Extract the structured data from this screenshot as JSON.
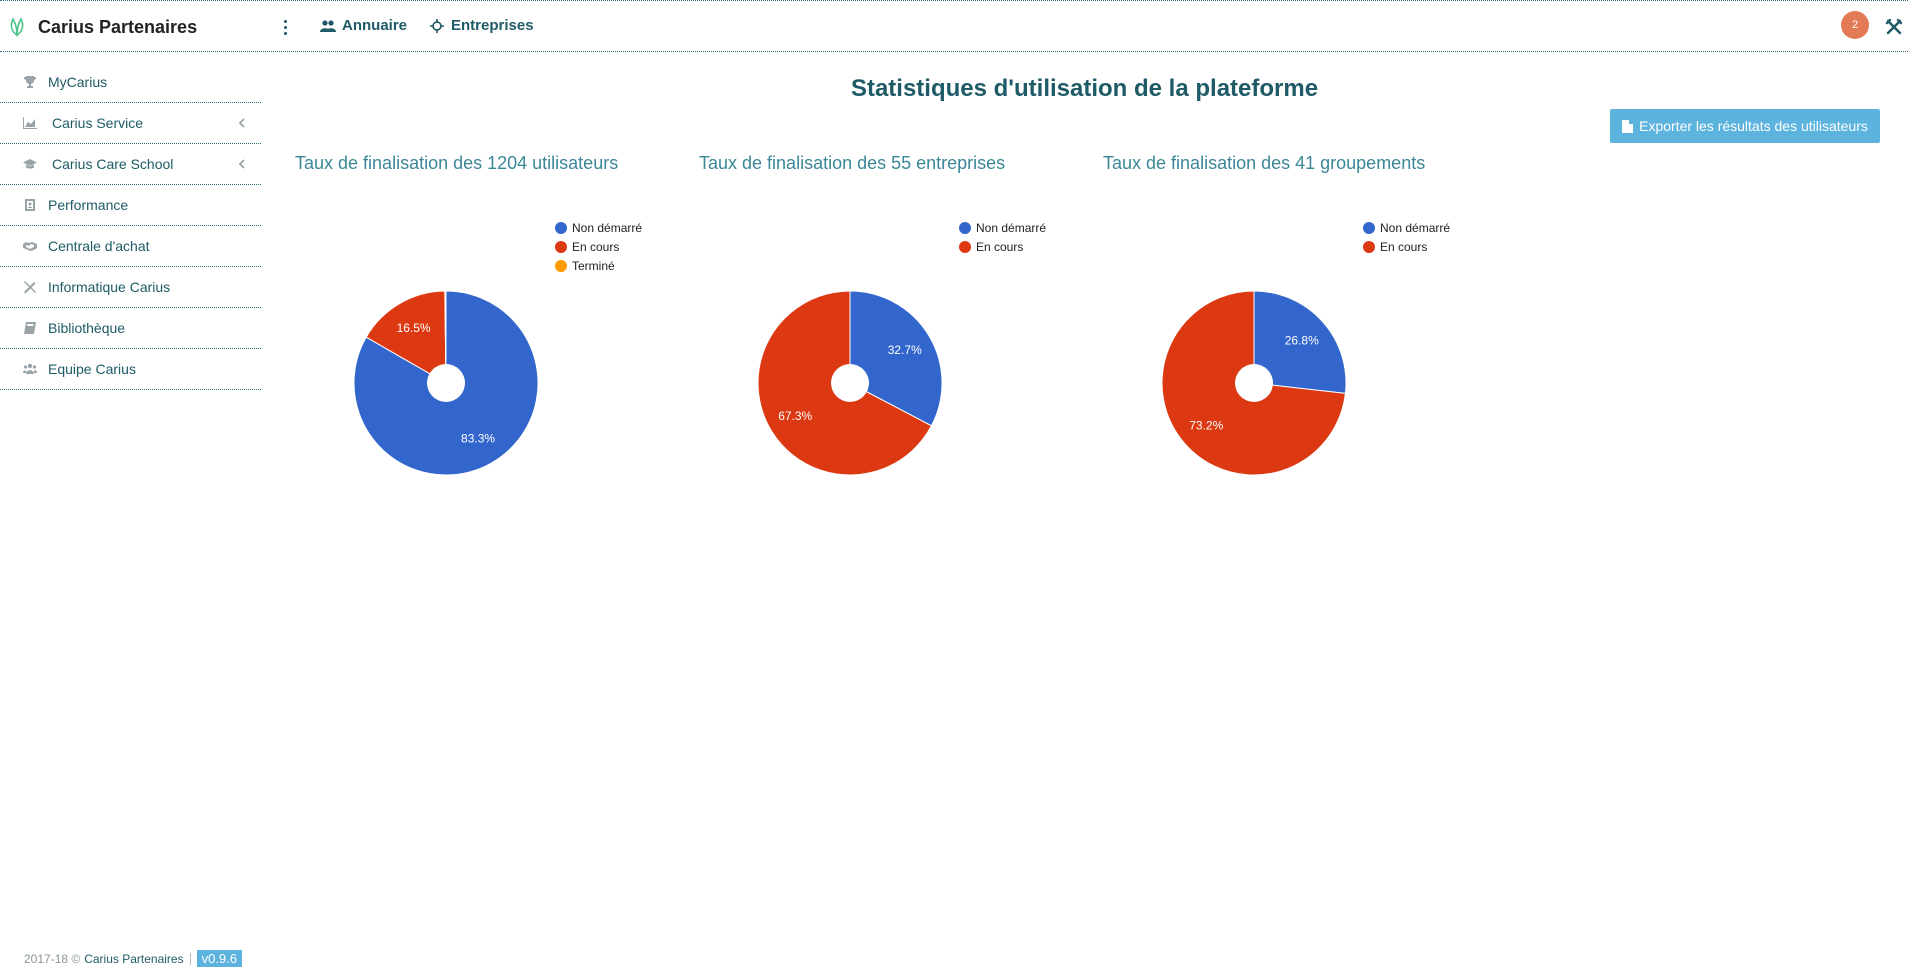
{
  "app": {
    "name": "Carius Partenaires"
  },
  "topnav": {
    "items": [
      {
        "label": "Annuaire",
        "icon": "users-icon"
      },
      {
        "label": "Entreprises",
        "icon": "crosshair-icon"
      }
    ],
    "notification_count": "2"
  },
  "sidebar": {
    "items": [
      {
        "label": "MyCarius",
        "icon": "trophy-icon",
        "has_submenu": false
      },
      {
        "label": "Carius Service",
        "icon": "area-chart-icon",
        "has_submenu": true
      },
      {
        "label": "Carius Care School",
        "icon": "graduation-cap-icon",
        "has_submenu": true
      },
      {
        "label": "Performance",
        "icon": "id-badge-icon",
        "has_submenu": false
      },
      {
        "label": "Centrale d'achat",
        "icon": "handshake-icon",
        "has_submenu": false
      },
      {
        "label": "Informatique Carius",
        "icon": "tools-icon",
        "has_submenu": false
      },
      {
        "label": "Bibliothèque",
        "icon": "book-icon",
        "has_submenu": false
      },
      {
        "label": "Equipe Carius",
        "icon": "team-icon",
        "has_submenu": false
      }
    ]
  },
  "main": {
    "title": "Statistiques d'utilisation de la plateforme",
    "export_label": "Exporter les résultats des utilisateurs"
  },
  "colors": {
    "non_demarre": "#3366cc",
    "en_cours": "#dc3912",
    "termine": "#ff9900",
    "accent": "#1e5b66",
    "button": "#5bb3de",
    "badge": "#e17a55"
  },
  "chart_data": [
    {
      "type": "pie",
      "title": "Taux de finalisation des 1204 utilisateurs",
      "legend": [
        "Non démarré",
        "En cours",
        "Terminé"
      ],
      "slices": [
        {
          "label": "Non démarré",
          "value": 83.3,
          "display": "83.3%"
        },
        {
          "label": "En cours",
          "value": 16.5,
          "display": "16.5%"
        },
        {
          "label": "Terminé",
          "value": 0.2,
          "display": ""
        }
      ]
    },
    {
      "type": "pie",
      "title": "Taux de finalisation des 55 entreprises",
      "legend": [
        "Non démarré",
        "En cours"
      ],
      "slices": [
        {
          "label": "Non démarré",
          "value": 32.7,
          "display": "32.7%"
        },
        {
          "label": "En cours",
          "value": 67.3,
          "display": "67.3%"
        }
      ]
    },
    {
      "type": "pie",
      "title": "Taux de finalisation des 41 groupements",
      "legend": [
        "Non démarré",
        "En cours"
      ],
      "slices": [
        {
          "label": "Non démarré",
          "value": 26.8,
          "display": "26.8%"
        },
        {
          "label": "En cours",
          "value": 73.2,
          "display": "73.2%"
        }
      ]
    }
  ],
  "footer": {
    "years": "2017-18 ©",
    "brand": "Carius Partenaires",
    "version": "v0.9.6"
  }
}
